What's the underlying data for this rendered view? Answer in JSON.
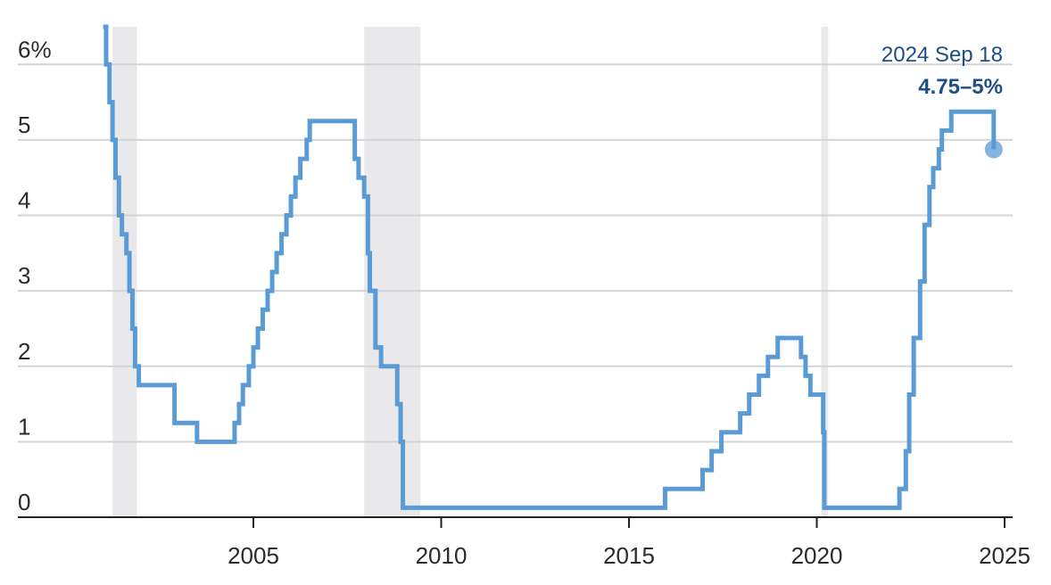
{
  "chart_data": {
    "type": "line",
    "title": "",
    "xlabel": "",
    "ylabel": "",
    "xlim": [
      2000.0,
      2025.5
    ],
    "ylim": [
      0,
      6.5
    ],
    "y_ticks": [
      0,
      1,
      2,
      3,
      4,
      5,
      6
    ],
    "y_tick_labels": [
      "0",
      "1",
      "2",
      "3",
      "4",
      "5",
      "6%"
    ],
    "x_ticks": [
      2005,
      2010,
      2015,
      2020,
      2025
    ],
    "x_tick_labels": [
      "2005",
      "2010",
      "2015",
      "2020",
      "2025"
    ],
    "grid": "horizontal",
    "step": true,
    "series": [
      {
        "color": "#5b9bd5",
        "points": [
          [
            2001.0,
            6.5
          ],
          [
            2001.08,
            6.0
          ],
          [
            2001.17,
            5.5
          ],
          [
            2001.25,
            5.0
          ],
          [
            2001.33,
            4.5
          ],
          [
            2001.42,
            4.0
          ],
          [
            2001.5,
            3.75
          ],
          [
            2001.62,
            3.5
          ],
          [
            2001.7,
            3.0
          ],
          [
            2001.78,
            2.5
          ],
          [
            2001.85,
            2.0
          ],
          [
            2001.95,
            1.75
          ],
          [
            2002.9,
            1.25
          ],
          [
            2003.5,
            1.0
          ],
          [
            2004.5,
            1.25
          ],
          [
            2004.62,
            1.5
          ],
          [
            2004.72,
            1.75
          ],
          [
            2004.88,
            2.0
          ],
          [
            2005.0,
            2.25
          ],
          [
            2005.12,
            2.5
          ],
          [
            2005.25,
            2.75
          ],
          [
            2005.38,
            3.0
          ],
          [
            2005.5,
            3.25
          ],
          [
            2005.62,
            3.5
          ],
          [
            2005.75,
            3.75
          ],
          [
            2005.88,
            4.0
          ],
          [
            2006.0,
            4.25
          ],
          [
            2006.12,
            4.5
          ],
          [
            2006.25,
            4.75
          ],
          [
            2006.42,
            5.0
          ],
          [
            2006.5,
            5.25
          ],
          [
            2007.7,
            4.75
          ],
          [
            2007.8,
            4.5
          ],
          [
            2007.95,
            4.25
          ],
          [
            2008.05,
            3.5
          ],
          [
            2008.1,
            3.0
          ],
          [
            2008.25,
            2.25
          ],
          [
            2008.4,
            2.0
          ],
          [
            2008.83,
            1.5
          ],
          [
            2008.92,
            1.0
          ],
          [
            2008.98,
            0.125
          ],
          [
            2015.96,
            0.375
          ],
          [
            2016.96,
            0.625
          ],
          [
            2017.2,
            0.875
          ],
          [
            2017.46,
            1.125
          ],
          [
            2017.96,
            1.375
          ],
          [
            2018.2,
            1.625
          ],
          [
            2018.46,
            1.875
          ],
          [
            2018.7,
            2.125
          ],
          [
            2018.96,
            2.375
          ],
          [
            2019.58,
            2.125
          ],
          [
            2019.7,
            1.875
          ],
          [
            2019.83,
            1.625
          ],
          [
            2020.17,
            1.125
          ],
          [
            2020.2,
            0.125
          ],
          [
            2022.2,
            0.375
          ],
          [
            2022.37,
            0.875
          ],
          [
            2022.46,
            1.625
          ],
          [
            2022.58,
            2.375
          ],
          [
            2022.75,
            3.125
          ],
          [
            2022.87,
            3.875
          ],
          [
            2023.0,
            4.375
          ],
          [
            2023.1,
            4.625
          ],
          [
            2023.25,
            4.875
          ],
          [
            2023.33,
            5.125
          ],
          [
            2023.58,
            5.375
          ],
          [
            2024.71,
            4.875
          ]
        ]
      }
    ],
    "shaded_periods": [
      [
        2001.25,
        2001.9
      ],
      [
        2007.95,
        2009.45
      ],
      [
        2020.12,
        2020.3
      ]
    ],
    "annotation": {
      "date_label": "2024 Sep 18",
      "value_label": "4.75–5%",
      "x": 2024.71,
      "y": 4.875
    }
  }
}
